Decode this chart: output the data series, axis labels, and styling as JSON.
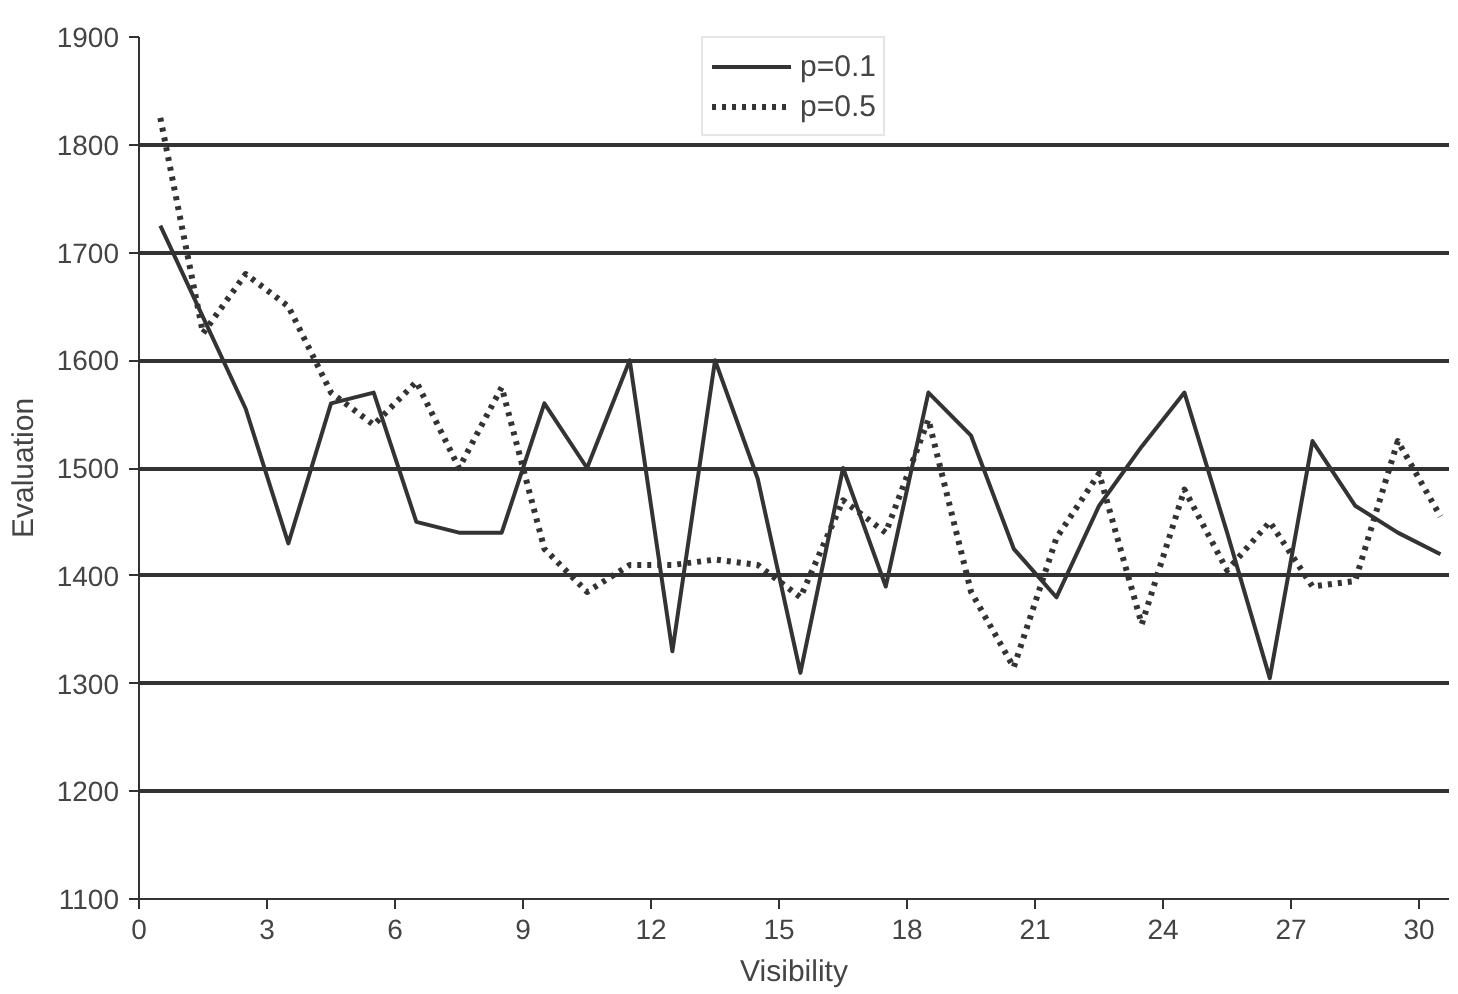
{
  "chart_data": {
    "type": "line",
    "xlabel": "Visibility",
    "ylabel": "Evaluation",
    "x": [
      0.5,
      1.5,
      2.5,
      3.5,
      4.5,
      5.5,
      6.5,
      7.5,
      8.5,
      9.5,
      10.5,
      11.5,
      12.5,
      13.5,
      14.5,
      15.5,
      16.5,
      17.5,
      18.5,
      19.5,
      20.5,
      21.5,
      22.5,
      23.5,
      24.5,
      25.5,
      26.5,
      27.5,
      28.5,
      29.5,
      30.5
    ],
    "series": [
      {
        "name": "p=0.1",
        "color": "#333333",
        "line_style": "solid",
        "values": [
          1725,
          1640,
          1555,
          1430,
          1560,
          1570,
          1450,
          1440,
          1440,
          1560,
          1500,
          1600,
          1330,
          1600,
          1490,
          1310,
          1500,
          1390,
          1570,
          1530,
          1425,
          1380,
          1465,
          1520,
          1570,
          1440,
          1305,
          1525,
          1465,
          1440,
          1420
        ]
      },
      {
        "name": "p=0.5",
        "color": "#333333",
        "line_style": "dotted",
        "values": [
          1825,
          1625,
          1680,
          1650,
          1570,
          1540,
          1580,
          1500,
          1575,
          1425,
          1385,
          1410,
          1410,
          1415,
          1410,
          1380,
          1470,
          1440,
          1545,
          1385,
          1315,
          1435,
          1495,
          1355,
          1480,
          1405,
          1450,
          1390,
          1395,
          1525,
          1455
        ]
      }
    ],
    "xlim": [
      0,
      30.7
    ],
    "ylim": [
      1100,
      1900
    ],
    "xticks": [
      0,
      3,
      6,
      9,
      12,
      15,
      18,
      21,
      24,
      27,
      30
    ],
    "yticks": [
      1100,
      1200,
      1300,
      1400,
      1500,
      1600,
      1700,
      1800,
      1900
    ],
    "grid": "y",
    "legend": "top",
    "marker": "none"
  }
}
